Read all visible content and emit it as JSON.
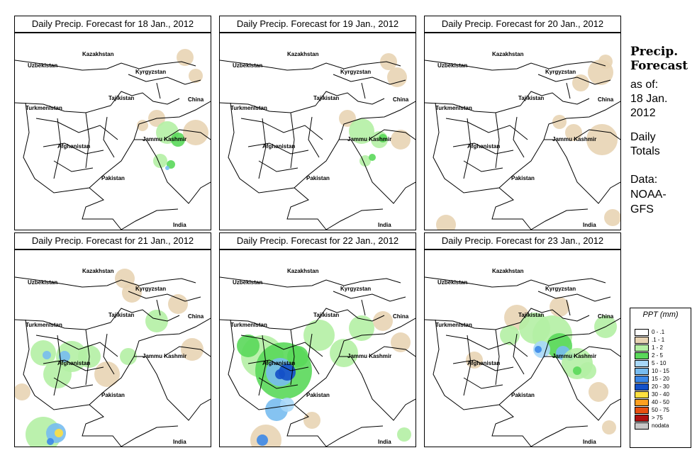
{
  "panels": [
    {
      "title": "Daily Precip. Forecast for  18 Jan., 2012"
    },
    {
      "title": "Daily Precip. Forecast for  19 Jan., 2012"
    },
    {
      "title": "Daily Precip. Forecast for  20 Jan., 2012"
    },
    {
      "title": "Daily Precip. Forecast for  21 Jan., 2012"
    },
    {
      "title": "Daily Precip. Forecast for  22 Jan., 2012"
    },
    {
      "title": "Daily Precip. Forecast for  23 Jan., 2012"
    }
  ],
  "map_labels": {
    "uzbekistan": "Uzbekistan",
    "kazakhstan": "Kazakhstan",
    "kyrgyzstan": "Kyrgyzstan",
    "tajikistan": "Tajikistan",
    "turkmenistan": "Turkmenistan",
    "china": "China",
    "afghanistan": "Afghanistan",
    "jammu_kashmir": "Jammu Kashmir",
    "pakistan": "Pakistan",
    "india": "India"
  },
  "side": {
    "title_line1": "Precip.",
    "title_line2": "Forecast",
    "asof_line1": "as of:",
    "asof_line2": "18 Jan.",
    "asof_line3": "2012",
    "daily_line1": "Daily",
    "daily_line2": "Totals",
    "data_line1": "Data:",
    "data_line2": "NOAA-",
    "data_line3": "GFS"
  },
  "legend": {
    "title": "PPT (mm)",
    "items": [
      {
        "label": "0 - .1",
        "color": "#ffffff"
      },
      {
        "label": ".1 - 1",
        "color": "#e8d4b4"
      },
      {
        "label": "1 - 2",
        "color": "#b4f0a4"
      },
      {
        "label": "2 - 5",
        "color": "#5ad85a"
      },
      {
        "label": "5 - 10",
        "color": "#a8d8f8"
      },
      {
        "label": "10 - 15",
        "color": "#78bcf0"
      },
      {
        "label": "15 - 20",
        "color": "#3c88e8"
      },
      {
        "label": "20 - 30",
        "color": "#1450c8"
      },
      {
        "label": "30 - 40",
        "color": "#ffe040"
      },
      {
        "label": "40 - 50",
        "color": "#ffa020"
      },
      {
        "label": "50 - 75",
        "color": "#e85010"
      },
      {
        "label": "> 75",
        "color": "#b01010"
      },
      {
        "label": "nodata",
        "color": "#c8c8c8"
      }
    ]
  }
}
